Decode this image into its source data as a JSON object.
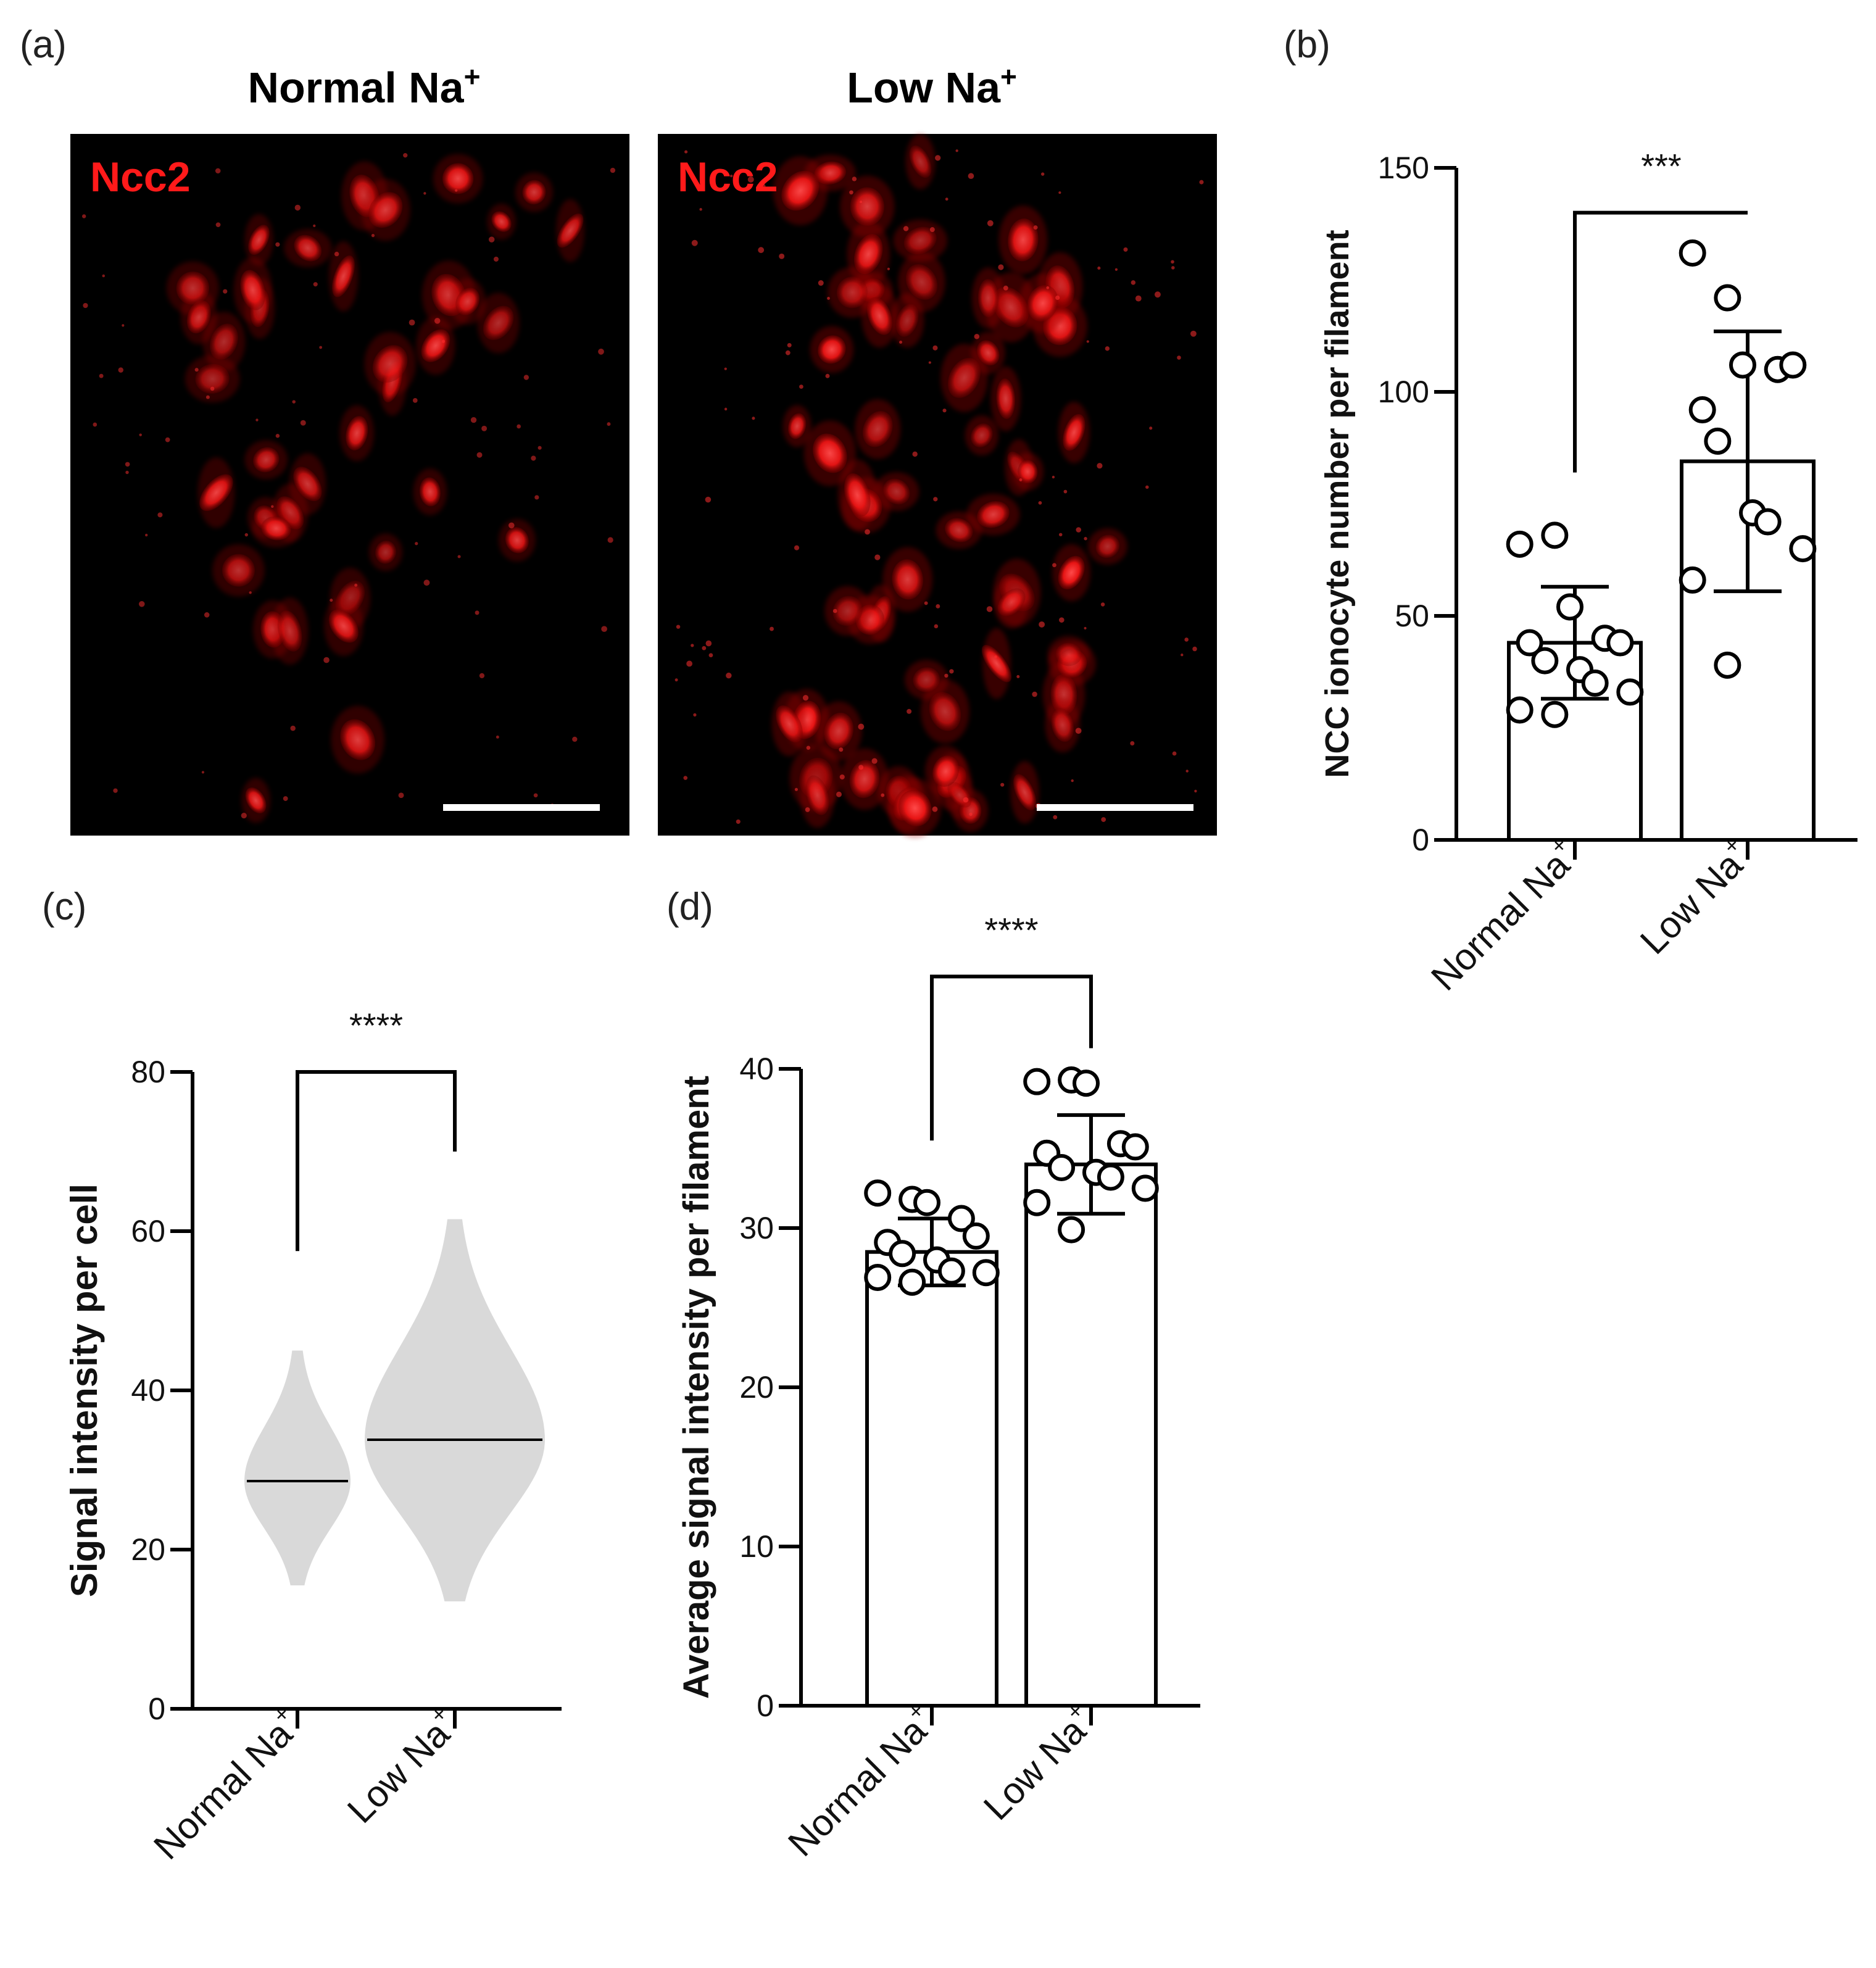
{
  "panel_labels": {
    "a": "(a)",
    "b": "(b)",
    "c": "(c)",
    "d": "(d)"
  },
  "panel_a": {
    "image_titles": [
      {
        "base": "Normal Na",
        "sup": "+"
      },
      {
        "base": "Low Na",
        "sup": "+"
      }
    ],
    "stain_label": "Ncc2",
    "colors": {
      "stain": "#ff2020",
      "background": "#000000",
      "scale_bar": "#ffffff"
    },
    "cell_intensity": {
      "normal_mean": 28.6,
      "low_mean": 33.8
    }
  },
  "chart_data": [
    {
      "id": "b",
      "type": "bar",
      "categories": [
        "Normal Na",
        "Low Na"
      ],
      "category_superscript": "+",
      "values": [
        44,
        84.5
      ],
      "error_sd": [
        12.5,
        29
      ],
      "points": [
        [
          66,
          68,
          52,
          45,
          44,
          44,
          40,
          38,
          35,
          33,
          29,
          28
        ],
        [
          131,
          121,
          106,
          105,
          106,
          96,
          89,
          73,
          71,
          65,
          58,
          39
        ]
      ],
      "ylabel": "NCC ionocyte number per filament",
      "ylim": [
        0,
        150
      ],
      "yticks": [
        0,
        50,
        100,
        150
      ],
      "significance": "***",
      "bar_fill": "#ffffff",
      "color": "#000000"
    },
    {
      "id": "c",
      "type": "violin",
      "categories": [
        "Normal Na",
        "Low Na"
      ],
      "category_superscript": "+",
      "medians": [
        28.6,
        33.8
      ],
      "ranges": [
        [
          15.5,
          45
        ],
        [
          13.5,
          61.5
        ]
      ],
      "ylabel": "Signal intensity per cell",
      "ylim": [
        0,
        80
      ],
      "yticks": [
        0,
        20,
        40,
        60,
        80
      ],
      "significance": "****",
      "fill": "#d9d9d9",
      "color": "#000000"
    },
    {
      "id": "d",
      "type": "bar",
      "categories": [
        "Normal Na",
        "Low Na"
      ],
      "category_superscript": "+",
      "values": [
        28.5,
        34
      ],
      "error_sd": [
        2.1,
        3.1
      ],
      "points": [
        [
          32.2,
          31.8,
          31.6,
          30.6,
          29.5,
          29.1,
          28.4,
          28.0,
          27.3,
          27.2,
          26.9,
          26.6
        ],
        [
          39.2,
          39.3,
          39.1,
          35.3,
          35.1,
          34.7,
          33.8,
          33.5,
          33.2,
          32.5,
          31.6,
          29.9
        ]
      ],
      "ylabel": "Average signal intensity per filament",
      "ylim": [
        0,
        40
      ],
      "yticks": [
        0,
        10,
        20,
        30,
        40
      ],
      "significance": "****",
      "bar_fill": "#ffffff",
      "color": "#000000"
    }
  ]
}
